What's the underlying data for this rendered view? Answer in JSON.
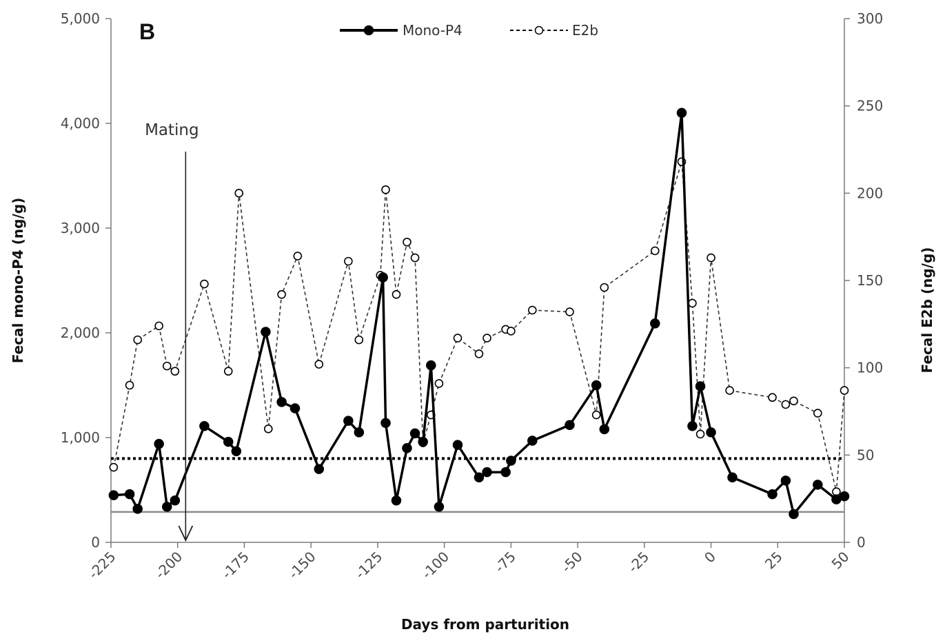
{
  "chart_data": {
    "type": "line",
    "panel_label": "B",
    "xlabel": "Days from parturition",
    "ylabel_left": "Fecal mono-P4 (ng/g)",
    "ylabel_right": "Fecal E2b (ng/g)",
    "xlim": [
      -225,
      50
    ],
    "ylim_left": [
      0,
      5000
    ],
    "ylim_right": [
      0,
      300
    ],
    "x_ticks": [
      -225,
      -200,
      -175,
      -150,
      -125,
      -100,
      -75,
      -50,
      -25,
      0,
      25,
      50
    ],
    "x_tick_labels": [
      "-225",
      "-200",
      "-175",
      "-150",
      "-125",
      "-100",
      "-75",
      "-50",
      "-25",
      "0",
      "25",
      "50"
    ],
    "y_left_ticks": [
      0,
      1000,
      2000,
      3000,
      4000,
      5000
    ],
    "y_left_tick_labels": [
      "0",
      "1,000",
      "2,000",
      "3,000",
      "4,000",
      "5,000"
    ],
    "y_right_ticks": [
      0,
      50,
      100,
      150,
      200,
      250,
      300
    ],
    "y_right_tick_labels": [
      "0",
      "50",
      "100",
      "150",
      "200",
      "250",
      "300"
    ],
    "grid": false,
    "legend_position": "top-center",
    "legend": [
      {
        "name": "Mono-P4",
        "marker_text": "",
        "style": "solid-filled"
      },
      {
        "name": "E2b",
        "style": "dashed-open"
      }
    ],
    "legend_e2b_marker_text": "---o---",
    "annotation": {
      "text": "Mating",
      "x": -197
    },
    "reference_lines": [
      {
        "axis": "left",
        "value": 800,
        "style": "dotted"
      },
      {
        "axis": "left",
        "value": 290,
        "style": "solid-gray"
      }
    ],
    "series": [
      {
        "name": "Mono-P4",
        "axis": "left",
        "color": "#000000",
        "points": [
          {
            "x": -224,
            "y": 450
          },
          {
            "x": -218,
            "y": 460
          },
          {
            "x": -215,
            "y": 320
          },
          {
            "x": -207,
            "y": 940
          },
          {
            "x": -204,
            "y": 340
          },
          {
            "x": -201,
            "y": 400
          },
          {
            "x": -190,
            "y": 1110
          },
          {
            "x": -181,
            "y": 960
          },
          {
            "x": -178,
            "y": 870
          },
          {
            "x": -167,
            "y": 2010
          },
          {
            "x": -161,
            "y": 1340
          },
          {
            "x": -156,
            "y": 1280
          },
          {
            "x": -147,
            "y": 700
          },
          {
            "x": -136,
            "y": 1160
          },
          {
            "x": -132,
            "y": 1050
          },
          {
            "x": -123,
            "y": 2530
          },
          {
            "x": -122,
            "y": 1140
          },
          {
            "x": -118,
            "y": 400
          },
          {
            "x": -114,
            "y": 900
          },
          {
            "x": -111,
            "y": 1040
          },
          {
            "x": -108,
            "y": 960
          },
          {
            "x": -105,
            "y": 1690
          },
          {
            "x": -102,
            "y": 340
          },
          {
            "x": -95,
            "y": 930
          },
          {
            "x": -87,
            "y": 620
          },
          {
            "x": -84,
            "y": 670
          },
          {
            "x": -77,
            "y": 670
          },
          {
            "x": -75,
            "y": 780
          },
          {
            "x": -67,
            "y": 970
          },
          {
            "x": -53,
            "y": 1120
          },
          {
            "x": -43,
            "y": 1500
          },
          {
            "x": -40,
            "y": 1080
          },
          {
            "x": -21,
            "y": 2090
          },
          {
            "x": -11,
            "y": 4100
          },
          {
            "x": -7,
            "y": 1110
          },
          {
            "x": -4,
            "y": 1490
          },
          {
            "x": 0,
            "y": 1050
          },
          {
            "x": 8,
            "y": 620
          },
          {
            "x": 23,
            "y": 460
          },
          {
            "x": 28,
            "y": 590
          },
          {
            "x": 31,
            "y": 270
          },
          {
            "x": 40,
            "y": 550
          },
          {
            "x": 47,
            "y": 410
          },
          {
            "x": 50,
            "y": 440
          }
        ]
      },
      {
        "name": "E2b",
        "axis": "right",
        "color": "#000000",
        "points": [
          {
            "x": -224,
            "y": 43
          },
          {
            "x": -218,
            "y": 90
          },
          {
            "x": -215,
            "y": 116
          },
          {
            "x": -207,
            "y": 124
          },
          {
            "x": -204,
            "y": 101
          },
          {
            "x": -201,
            "y": 98
          },
          {
            "x": -190,
            "y": 148
          },
          {
            "x": -181,
            "y": 98
          },
          {
            "x": -177,
            "y": 200
          },
          {
            "x": -166,
            "y": 65
          },
          {
            "x": -161,
            "y": 142
          },
          {
            "x": -155,
            "y": 164
          },
          {
            "x": -147,
            "y": 102
          },
          {
            "x": -136,
            "y": 161
          },
          {
            "x": -132,
            "y": 116
          },
          {
            "x": -124,
            "y": 153
          },
          {
            "x": -122,
            "y": 202
          },
          {
            "x": -118,
            "y": 142
          },
          {
            "x": -114,
            "y": 172
          },
          {
            "x": -111,
            "y": 163
          },
          {
            "x": -108,
            "y": 57
          },
          {
            "x": -105,
            "y": 73
          },
          {
            "x": -102,
            "y": 91
          },
          {
            "x": -95,
            "y": 117
          },
          {
            "x": -87,
            "y": 108
          },
          {
            "x": -84,
            "y": 117
          },
          {
            "x": -77,
            "y": 122
          },
          {
            "x": -75,
            "y": 121
          },
          {
            "x": -67,
            "y": 133
          },
          {
            "x": -53,
            "y": 132
          },
          {
            "x": -43,
            "y": 73
          },
          {
            "x": -40,
            "y": 146
          },
          {
            "x": -21,
            "y": 167
          },
          {
            "x": -11,
            "y": 218
          },
          {
            "x": -7,
            "y": 137
          },
          {
            "x": -4,
            "y": 62
          },
          {
            "x": 0,
            "y": 163
          },
          {
            "x": 7,
            "y": 87
          },
          {
            "x": 23,
            "y": 83
          },
          {
            "x": 28,
            "y": 79
          },
          {
            "x": 31,
            "y": 81
          },
          {
            "x": 40,
            "y": 74
          },
          {
            "x": 47,
            "y": 29
          },
          {
            "x": 50,
            "y": 87
          }
        ]
      }
    ]
  }
}
